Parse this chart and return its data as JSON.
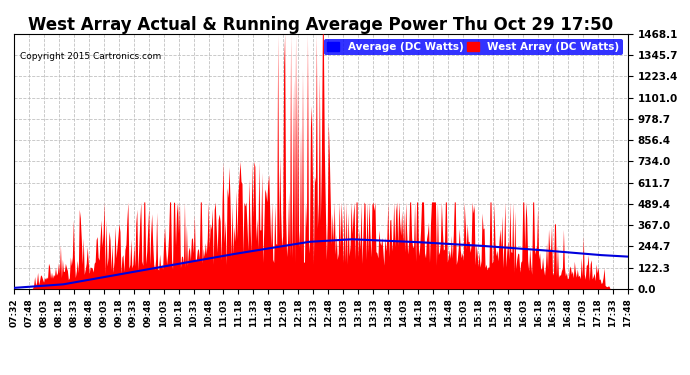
{
  "title": "West Array Actual & Running Average Power Thu Oct 29 17:50",
  "copyright": "Copyright 2015 Cartronics.com",
  "legend_avg": "Average (DC Watts)",
  "legend_west": "West Array (DC Watts)",
  "yticks": [
    0.0,
    122.3,
    244.7,
    367.0,
    489.4,
    611.7,
    734.0,
    856.4,
    978.7,
    1101.0,
    1223.4,
    1345.7,
    1468.1
  ],
  "ymax": 1468.1,
  "ymin": 0.0,
  "background_color": "#ffffff",
  "plot_background": "#ffffff",
  "grid_color": "#bbbbbb",
  "red_color": "#ff0000",
  "blue_avg_color": "#0000dd",
  "title_fontsize": 12,
  "n_points": 620,
  "x_labels": [
    "07:32",
    "07:48",
    "08:03",
    "08:18",
    "08:33",
    "08:48",
    "09:03",
    "09:18",
    "09:33",
    "09:48",
    "10:03",
    "10:18",
    "10:33",
    "10:48",
    "11:03",
    "11:18",
    "11:33",
    "11:48",
    "12:03",
    "12:18",
    "12:33",
    "12:48",
    "13:03",
    "13:18",
    "13:33",
    "13:48",
    "14:03",
    "14:18",
    "14:33",
    "14:48",
    "15:03",
    "15:18",
    "15:33",
    "15:48",
    "16:03",
    "16:18",
    "16:33",
    "16:48",
    "17:03",
    "17:18",
    "17:33",
    "17:48"
  ]
}
